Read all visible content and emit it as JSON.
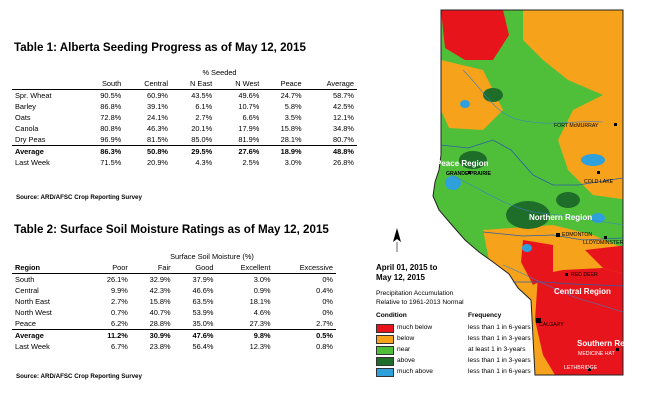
{
  "table1": {
    "title": "Table 1: Alberta Seeding Progress as of May 12, 2015",
    "group_header": "% Seeded",
    "columns": [
      "South",
      "Central",
      "N East",
      "N West",
      "Peace",
      "Average"
    ],
    "rows": [
      {
        "label": "Spr. Wheat",
        "values": [
          "90.5%",
          "60.9%",
          "43.5%",
          "49.6%",
          "24.7%",
          "58.7%"
        ],
        "bold": false
      },
      {
        "label": "Barley",
        "values": [
          "86.8%",
          "39.1%",
          "6.1%",
          "10.7%",
          "5.8%",
          "42.5%"
        ],
        "bold": false
      },
      {
        "label": "Oats",
        "values": [
          "72.8%",
          "24.1%",
          "2.7%",
          "6.6%",
          "3.5%",
          "12.1%"
        ],
        "bold": false
      },
      {
        "label": "Canola",
        "values": [
          "80.8%",
          "46.3%",
          "20.1%",
          "17.9%",
          "15.8%",
          "34.8%"
        ],
        "bold": false
      },
      {
        "label": "Dry Peas",
        "values": [
          "96.9%",
          "81.5%",
          "85.0%",
          "81.9%",
          "28.1%",
          "80.7%"
        ],
        "bold": false
      },
      {
        "label": "Average",
        "values": [
          "86.3%",
          "50.8%",
          "29.5%",
          "27.6%",
          "18.9%",
          "48.8%"
        ],
        "bold": true
      },
      {
        "label": "Last Week",
        "values": [
          "71.5%",
          "20.9%",
          "4.3%",
          "2.5%",
          "3.0%",
          "26.8%"
        ],
        "bold": false
      }
    ],
    "source": "Source:  ARD/AFSC Crop Reporting Survey"
  },
  "table2": {
    "title": "Table 2: Surface Soil Moisture Ratings as of May 12, 2015",
    "group_header": "Surface Soil Moisture (%)",
    "region_header": "Region",
    "columns": [
      "Poor",
      "Fair",
      "Good",
      "Excellent",
      "Excessive"
    ],
    "rows": [
      {
        "label": "South",
        "values": [
          "26.1%",
          "32.9%",
          "37.9%",
          "3.0%",
          "0%"
        ],
        "bold": false
      },
      {
        "label": "Central",
        "values": [
          "9.9%",
          "42.3%",
          "46.6%",
          "0.9%",
          "0.4%"
        ],
        "bold": false
      },
      {
        "label": "North East",
        "values": [
          "2.7%",
          "15.8%",
          "63.5%",
          "18.1%",
          "0%"
        ],
        "bold": false
      },
      {
        "label": "North West",
        "values": [
          "0.7%",
          "40.7%",
          "53.9%",
          "4.6%",
          "0%"
        ],
        "bold": false
      },
      {
        "label": "Peace",
        "values": [
          "6.2%",
          "28.8%",
          "35.0%",
          "27.3%",
          "2.7%"
        ],
        "bold": false
      },
      {
        "label": "Average",
        "values": [
          "11.2%",
          "30.9%",
          "47.6%",
          "9.8%",
          "0.5%"
        ],
        "bold": true
      },
      {
        "label": "Last Week",
        "values": [
          "6.7%",
          "23.8%",
          "56.4%",
          "12.3%",
          "0.8%"
        ],
        "bold": false
      }
    ],
    "source": "Source:  ARD/AFSC Crop Reporting Survey"
  },
  "map": {
    "labels": {
      "fort_mcmurray": "FORT McMURRAY",
      "peace_region": "Peace Region",
      "grande_prairie": "GRANDE PRAIRIE",
      "cold_lake": "COLD LAKE",
      "northern_region": "Northern Region",
      "edmonton": "EDMONTON",
      "lloydminster": "LLOYDMINSTER",
      "red_deer": "RED DEER",
      "central_region": "Central Region",
      "calgary": "CALGARY",
      "southern_region": "Southern Region",
      "medicine_hat": "MEDICINE HAT",
      "lethbridge": "LETHBRIDGE"
    },
    "date_line1": "April 01, 2015 to",
    "date_line2": "May 12, 2015",
    "subtitle_line1": "Precipitation Accumulation",
    "subtitle_line2": "Relative to 1961-2013 Normal",
    "legend_header_condition": "Condition",
    "legend_header_frequency": "Frequency",
    "legend": [
      {
        "condition": "much below",
        "frequency": "less than 1 in 6-years",
        "color": "#e8141c"
      },
      {
        "condition": "below",
        "frequency": "less than 1 in 3-years",
        "color": "#f7a21b"
      },
      {
        "condition": "near",
        "frequency": "at least 1 in 3-years",
        "color": "#4fbf3a"
      },
      {
        "condition": "above",
        "frequency": "less than 1 in 3-years",
        "color": "#1e6e2a"
      },
      {
        "condition": "much above",
        "frequency": "less than 1 in 6-years",
        "color": "#2ea0dc"
      }
    ]
  }
}
